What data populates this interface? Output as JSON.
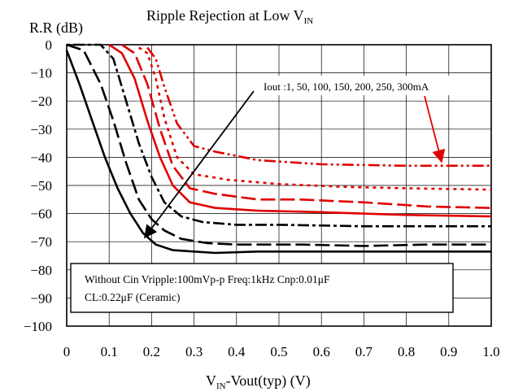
{
  "chart_data": {
    "type": "line",
    "title": "Ripple Rejection at Low V",
    "title_sub": "IN",
    "ylabel": "R.R (dB)",
    "xlabel": {
      "pre": "V",
      "sub": "IN",
      "post": "-Vout(typ) (V)"
    },
    "xlim": [
      0,
      1.0
    ],
    "ylim": [
      -100,
      0
    ],
    "x_ticks": [
      "0",
      "0.1",
      "0.2",
      "0.3",
      "0.4",
      "0.5",
      "0.6",
      "0.7",
      "0.8",
      "0.9",
      "1.0"
    ],
    "y_ticks": [
      "0",
      "−10",
      "−20",
      "−30",
      "−40",
      "−50",
      "−60",
      "−70",
      "−80",
      "−90",
      "−100"
    ],
    "grid": true,
    "annotation_iout": "Iout  :1, 50, 100, 150, 200, 250, 300mA",
    "condition_lines": [
      "Without Cin  Vripple:100mVp-p  Freq:1kHz  Cnp:0.01μF",
      "CL:0.22μF  (Ceramic)"
    ],
    "series": [
      {
        "color": "#000000",
        "style": "solid",
        "values": [
          [
            0,
            -2
          ],
          [
            0.03,
            -14
          ],
          [
            0.06,
            -27
          ],
          [
            0.09,
            -40
          ],
          [
            0.12,
            -51
          ],
          [
            0.15,
            -60
          ],
          [
            0.18,
            -67
          ],
          [
            0.21,
            -71
          ],
          [
            0.25,
            -73
          ],
          [
            0.3,
            -73.5
          ],
          [
            0.35,
            -74
          ],
          [
            0.45,
            -73.5
          ],
          [
            0.6,
            -73.5
          ],
          [
            0.8,
            -73.5
          ],
          [
            1.0,
            -73.5
          ]
        ]
      },
      {
        "color": "#000000",
        "style": "longdash",
        "values": [
          [
            0,
            0
          ],
          [
            0.04,
            -2
          ],
          [
            0.08,
            -14
          ],
          [
            0.11,
            -27
          ],
          [
            0.14,
            -42
          ],
          [
            0.17,
            -55
          ],
          [
            0.2,
            -62
          ],
          [
            0.23,
            -66
          ],
          [
            0.27,
            -69
          ],
          [
            0.33,
            -70.5
          ],
          [
            0.4,
            -71
          ],
          [
            0.55,
            -71
          ],
          [
            0.7,
            -71.5
          ],
          [
            0.85,
            -71
          ],
          [
            1.0,
            -71
          ]
        ]
      },
      {
        "color": "#000000",
        "style": "dotdash",
        "values": [
          [
            0,
            0
          ],
          [
            0.08,
            0
          ],
          [
            0.11,
            -5
          ],
          [
            0.14,
            -20
          ],
          [
            0.17,
            -35
          ],
          [
            0.2,
            -47
          ],
          [
            0.23,
            -56
          ],
          [
            0.27,
            -61
          ],
          [
            0.32,
            -63
          ],
          [
            0.4,
            -64
          ],
          [
            0.5,
            -64
          ],
          [
            0.7,
            -64.5
          ],
          [
            0.85,
            -64.5
          ],
          [
            1.0,
            -64.5
          ]
        ]
      },
      {
        "color": "#e00000",
        "style": "solid",
        "values": [
          [
            0.1,
            0
          ],
          [
            0.13,
            -3
          ],
          [
            0.16,
            -12
          ],
          [
            0.19,
            -27
          ],
          [
            0.22,
            -40
          ],
          [
            0.25,
            -50
          ],
          [
            0.29,
            -56
          ],
          [
            0.35,
            -58
          ],
          [
            0.45,
            -59
          ],
          [
            0.6,
            -59.5
          ],
          [
            0.8,
            -60.5
          ],
          [
            1.0,
            -61
          ]
        ]
      },
      {
        "color": "#e00000",
        "style": "longdash",
        "values": [
          [
            0.13,
            0
          ],
          [
            0.16,
            -3
          ],
          [
            0.19,
            -14
          ],
          [
            0.22,
            -30
          ],
          [
            0.25,
            -43
          ],
          [
            0.29,
            -51
          ],
          [
            0.35,
            -53
          ],
          [
            0.45,
            -55
          ],
          [
            0.55,
            -55
          ],
          [
            0.7,
            -56
          ],
          [
            0.85,
            -57.5
          ],
          [
            1.0,
            -58
          ]
        ]
      },
      {
        "color": "#e00000",
        "style": "dot",
        "values": [
          [
            0.17,
            -1
          ],
          [
            0.19,
            -3
          ],
          [
            0.21,
            -12
          ],
          [
            0.23,
            -26
          ],
          [
            0.26,
            -40
          ],
          [
            0.3,
            -46
          ],
          [
            0.38,
            -48
          ],
          [
            0.5,
            -49.5
          ],
          [
            0.65,
            -50.5
          ],
          [
            0.8,
            -51
          ],
          [
            1.0,
            -51.5
          ]
        ]
      },
      {
        "color": "#e00000",
        "style": "dashdotdot",
        "values": [
          [
            0.19,
            -1
          ],
          [
            0.21,
            -5
          ],
          [
            0.23,
            -15
          ],
          [
            0.26,
            -28
          ],
          [
            0.3,
            -36
          ],
          [
            0.35,
            -38
          ],
          [
            0.45,
            -41
          ],
          [
            0.6,
            -42.5
          ],
          [
            0.8,
            -43
          ],
          [
            1.0,
            -43
          ]
        ]
      }
    ]
  }
}
